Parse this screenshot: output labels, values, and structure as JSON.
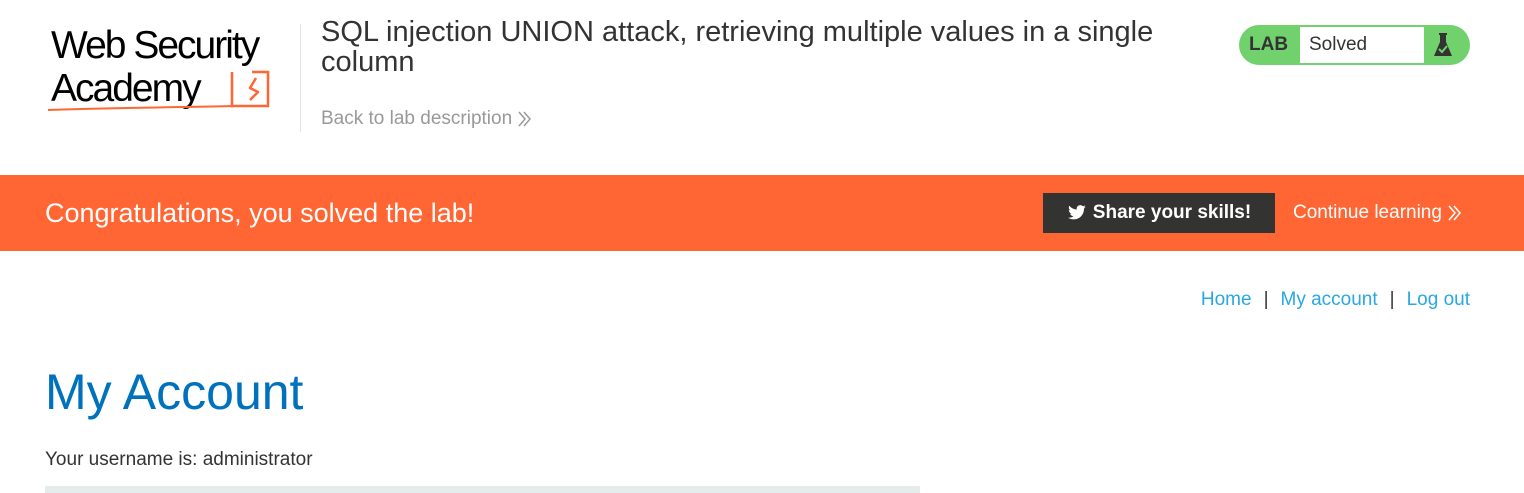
{
  "header": {
    "logo_line1": "Web Security",
    "logo_line2": "Academy",
    "lab_title": "SQL injection UNION attack, retrieving multiple values in a single column",
    "back_link": "Back to lab description"
  },
  "status": {
    "badge": "LAB",
    "text": "Solved",
    "color": "#70d16d"
  },
  "banner": {
    "message": "Congratulations, you solved the lab!",
    "share_label": "Share your skills!",
    "continue_label": "Continue learning",
    "color": "#ff6633"
  },
  "nav": {
    "items": [
      {
        "label": "Home"
      },
      {
        "label": "My account"
      },
      {
        "label": "Log out"
      }
    ],
    "separator": "|"
  },
  "content": {
    "title": "My Account",
    "username_text": "Your username is: administrator"
  },
  "icons": {
    "status": "flask-icon",
    "share": "twitter-icon",
    "continue": "double-chevron-right-icon",
    "back": "double-chevron-right-icon"
  }
}
